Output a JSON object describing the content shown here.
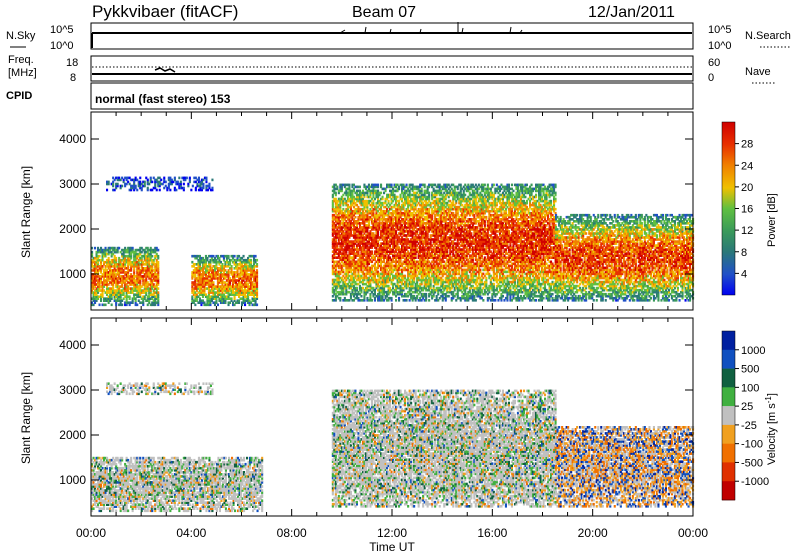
{
  "header": {
    "station": "Pykkvibaer (fitACF)",
    "beam": "Beam 07",
    "date": "12/Jan/2011"
  },
  "nsky_strip": {
    "left_label": "N.Sky",
    "right_label": "N.Search",
    "left_ticks": [
      "10^5",
      "10^0"
    ],
    "right_ticks": [
      "10^5",
      "10^0"
    ]
  },
  "freq_strip": {
    "left_label_1": "Freq.",
    "left_label_2": "[MHz]",
    "right_label": "Nave",
    "left_ticks": [
      "18",
      "8"
    ],
    "right_ticks": [
      "60",
      "0"
    ]
  },
  "cpid": {
    "label": "CPID",
    "text": "normal (fast stereo) 153"
  },
  "colors": {
    "power_scale": [
      "#0000f0",
      "#2050c8",
      "#2a7878",
      "#3a9a5a",
      "#60c040",
      "#f0c000",
      "#f08000",
      "#e83000",
      "#d00000"
    ],
    "velocity_scale": [
      "#0020a0",
      "#1050c0",
      "#106040",
      "#40b040",
      "#c0c0c0",
      "#f0a020",
      "#f07000",
      "#e03000",
      "#c00000"
    ]
  },
  "chart_data": [
    {
      "type": "heatmap",
      "name": "power-panel",
      "ylabel": "Slant Range [km]",
      "yticks": [
        "4000",
        "3000",
        "2000",
        "1000"
      ],
      "ylim": [
        200,
        4600
      ],
      "xlim": [
        0,
        24
      ],
      "colorbar": {
        "label": "Power [dB]",
        "ticks": [
          "28",
          "24",
          "20",
          "16",
          "12",
          "8",
          "4"
        ],
        "range": [
          0,
          32
        ]
      },
      "echo_regions": [
        {
          "t0": 0.0,
          "t1": 2.7,
          "r0": 300,
          "r1": 1600,
          "level": 22
        },
        {
          "t0": 4.0,
          "t1": 6.6,
          "r0": 300,
          "r1": 1400,
          "level": 22
        },
        {
          "t0": 0.6,
          "t1": 4.8,
          "r0": 2850,
          "r1": 3150,
          "level": 6
        },
        {
          "t0": 9.6,
          "t1": 18.5,
          "r0": 400,
          "r1": 3000,
          "level": 25
        },
        {
          "t0": 18.5,
          "t1": 24.0,
          "r0": 400,
          "r1": 2300,
          "level": 24
        }
      ]
    },
    {
      "type": "heatmap",
      "name": "velocity-panel",
      "ylabel": "Slant Range [km]",
      "xlabel": "Time UT",
      "yticks": [
        "4000",
        "3000",
        "2000",
        "1000"
      ],
      "xticks": [
        "00:00",
        "04:00",
        "08:00",
        "12:00",
        "16:00",
        "20:00",
        "00:00"
      ],
      "ylim": [
        200,
        4600
      ],
      "xlim": [
        0,
        24
      ],
      "colorbar": {
        "label": "Velocity [m s",
        "label_sup": "-1",
        "label_end": "]",
        "ticks": [
          "1000",
          "500",
          "100",
          "25",
          "-25",
          "-100",
          "-500",
          "-1000"
        ]
      },
      "echo_regions": [
        {
          "t0": 0.0,
          "t1": 6.8,
          "r0": 300,
          "r1": 1500,
          "level": 0
        },
        {
          "t0": 0.6,
          "t1": 4.8,
          "r0": 2900,
          "r1": 3150,
          "level": 0
        },
        {
          "t0": 9.6,
          "t1": 18.5,
          "r0": 400,
          "r1": 3000,
          "level": 0
        },
        {
          "t0": 18.5,
          "t1": 24.0,
          "r0": 400,
          "r1": 2200,
          "level": -100
        }
      ]
    }
  ]
}
